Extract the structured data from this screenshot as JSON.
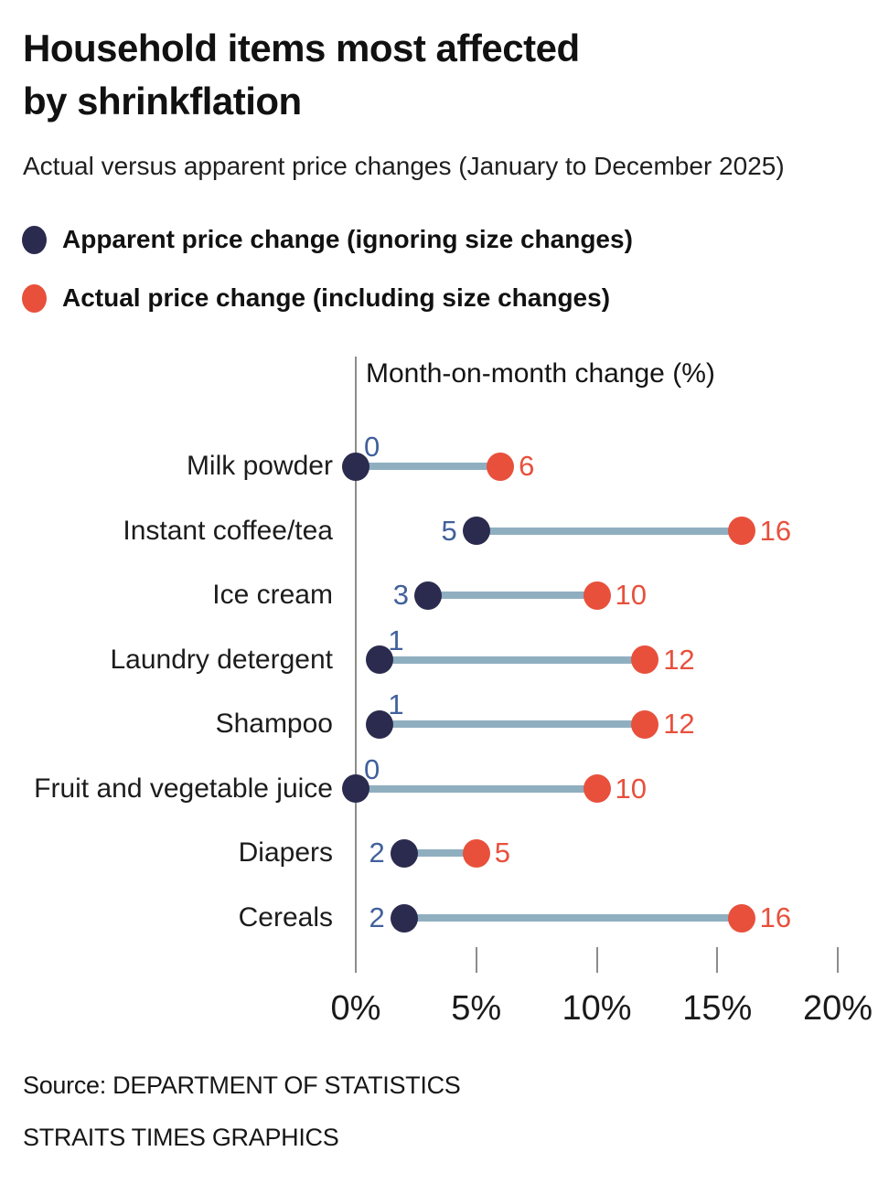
{
  "title": {
    "line1": "Household items most affected",
    "line2": "by shrinkflation"
  },
  "subtitle": "Actual versus apparent price changes (January to December 2025)",
  "legend": [
    {
      "label": "Apparent price change (ignoring size changes)",
      "color": "#2b2b4f"
    },
    {
      "label": "Actual price change (including size changes)",
      "color": "#e8503c"
    }
  ],
  "chart_data": {
    "type": "dumbbell",
    "title": "Month-on-month change (%)",
    "categories": [
      "Milk powder",
      "Instant coffee/tea",
      "Ice cream",
      "Laundry detergent",
      "Shampoo",
      "Fruit and vegetable juice",
      "Diapers",
      "Cereals"
    ],
    "series": [
      {
        "name": "Apparent price change (ignoring size changes)",
        "color": "#2b2b4f",
        "values": [
          0,
          5,
          3,
          1,
          1,
          0,
          2,
          2
        ]
      },
      {
        "name": "Actual price change (including size changes)",
        "color": "#e8503c",
        "values": [
          6,
          16,
          10,
          12,
          12,
          10,
          5,
          16
        ]
      }
    ],
    "x_ticks": [
      "0%",
      "5%",
      "10%",
      "15%",
      "20%"
    ],
    "x_tick_values": [
      0,
      5,
      10,
      15,
      20
    ],
    "x_range": [
      0,
      20
    ],
    "grid": false,
    "legend_position": "top-left"
  },
  "colors": {
    "apparent_navy": "#2b2b4f",
    "actual_red": "#e8503c",
    "connector_blue_gray": "#8fafc0",
    "apparent_value_text": "#41609c",
    "axis_gray": "#8c8c8c",
    "text": "#1a1a1a"
  },
  "source": {
    "line1": "Source: DEPARTMENT OF STATISTICS",
    "line2": "STRAITS TIMES GRAPHICS"
  }
}
